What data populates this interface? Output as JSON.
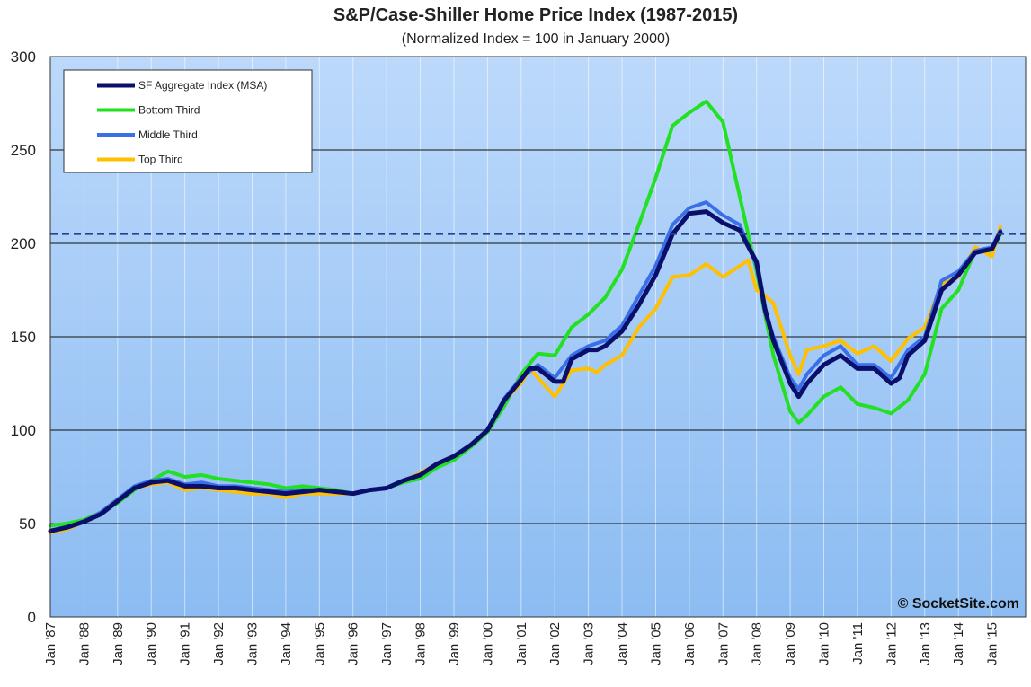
{
  "chart_data": {
    "type": "line",
    "title": "S&P/Case-Shiller Home Price Index (1987-2015)",
    "subtitle": "(Normalized Index = 100 in January 2000)",
    "xlabel": "",
    "ylabel": "",
    "ylim": [
      0,
      300
    ],
    "xlim": [
      1987.0,
      2016.0
    ],
    "yticks": [
      0,
      50,
      100,
      150,
      200,
      250,
      300
    ],
    "xtick_labels": [
      "Jan '87",
      "Jan '88",
      "Jan '89",
      "Jan '90",
      "Jan '91",
      "Jan '92",
      "Jan '93",
      "Jan '94",
      "Jan '95",
      "Jan '96",
      "Jan '97",
      "Jan '98",
      "Jan '99",
      "Jan '00",
      "Jan '01",
      "Jan '02",
      "Jan '03",
      "Jan '04",
      "Jan '05",
      "Jan '06",
      "Jan '07",
      "Jan '08",
      "Jan '09",
      "Jan '10",
      "Jan '11",
      "Jan '12",
      "Jan '13",
      "Jan '14",
      "Jan '15"
    ],
    "grid": true,
    "legend_position": "top-left",
    "reference_line": {
      "value": 205,
      "style": "dashed",
      "color": "#2a3f8f"
    },
    "copyright": "© SocketSite.com",
    "series": [
      {
        "name": "SF Aggregate Index (MSA)",
        "color": "#0a0f6b",
        "points": [
          [
            1987.0,
            46
          ],
          [
            1987.5,
            48
          ],
          [
            1988.0,
            51
          ],
          [
            1988.5,
            55
          ],
          [
            1989.0,
            62
          ],
          [
            1989.5,
            69
          ],
          [
            1990.0,
            72
          ],
          [
            1990.5,
            73
          ],
          [
            1991.0,
            70
          ],
          [
            1991.5,
            70
          ],
          [
            1992.0,
            69
          ],
          [
            1992.5,
            69
          ],
          [
            1993.0,
            68
          ],
          [
            1993.5,
            67
          ],
          [
            1994.0,
            66
          ],
          [
            1994.5,
            67
          ],
          [
            1995.0,
            68
          ],
          [
            1995.5,
            67
          ],
          [
            1996.0,
            66
          ],
          [
            1996.5,
            68
          ],
          [
            1997.0,
            69
          ],
          [
            1997.5,
            73
          ],
          [
            1998.0,
            76
          ],
          [
            1998.5,
            82
          ],
          [
            1999.0,
            86
          ],
          [
            1999.5,
            92
          ],
          [
            2000.0,
            100
          ],
          [
            2000.5,
            116
          ],
          [
            2001.0,
            127
          ],
          [
            2001.25,
            133
          ],
          [
            2001.5,
            133
          ],
          [
            2002.0,
            126
          ],
          [
            2002.25,
            126
          ],
          [
            2002.5,
            138
          ],
          [
            2003.0,
            143
          ],
          [
            2003.25,
            143
          ],
          [
            2003.5,
            145
          ],
          [
            2004.0,
            153
          ],
          [
            2004.5,
            167
          ],
          [
            2005.0,
            183
          ],
          [
            2005.5,
            205
          ],
          [
            2006.0,
            216
          ],
          [
            2006.5,
            217
          ],
          [
            2007.0,
            211
          ],
          [
            2007.5,
            207
          ],
          [
            2008.0,
            190
          ],
          [
            2008.25,
            165
          ],
          [
            2008.5,
            148
          ],
          [
            2009.0,
            125
          ],
          [
            2009.25,
            118
          ],
          [
            2009.5,
            125
          ],
          [
            2010.0,
            135
          ],
          [
            2010.5,
            140
          ],
          [
            2011.0,
            133
          ],
          [
            2011.5,
            133
          ],
          [
            2012.0,
            125
          ],
          [
            2012.25,
            128
          ],
          [
            2012.5,
            140
          ],
          [
            2013.0,
            148
          ],
          [
            2013.5,
            175
          ],
          [
            2014.0,
            183
          ],
          [
            2014.5,
            195
          ],
          [
            2015.0,
            197
          ],
          [
            2015.25,
            206
          ]
        ]
      },
      {
        "name": "Bottom Third",
        "color": "#22e022",
        "points": [
          [
            1987.0,
            49
          ],
          [
            1987.5,
            50
          ],
          [
            1988.0,
            52
          ],
          [
            1988.5,
            56
          ],
          [
            1989.0,
            61
          ],
          [
            1989.5,
            68
          ],
          [
            1990.0,
            73
          ],
          [
            1990.5,
            78
          ],
          [
            1991.0,
            75
          ],
          [
            1991.5,
            76
          ],
          [
            1992.0,
            74
          ],
          [
            1992.5,
            73
          ],
          [
            1993.0,
            72
          ],
          [
            1993.5,
            71
          ],
          [
            1994.0,
            69
          ],
          [
            1994.5,
            70
          ],
          [
            1995.0,
            69
          ],
          [
            1995.5,
            68
          ],
          [
            1996.0,
            66
          ],
          [
            1996.5,
            68
          ],
          [
            1997.0,
            69
          ],
          [
            1997.5,
            72
          ],
          [
            1998.0,
            74
          ],
          [
            1998.5,
            80
          ],
          [
            1999.0,
            84
          ],
          [
            1999.5,
            91
          ],
          [
            2000.0,
            99
          ],
          [
            2000.5,
            113
          ],
          [
            2001.0,
            130
          ],
          [
            2001.5,
            141
          ],
          [
            2002.0,
            140
          ],
          [
            2002.5,
            155
          ],
          [
            2003.0,
            162
          ],
          [
            2003.5,
            171
          ],
          [
            2004.0,
            186
          ],
          [
            2004.5,
            210
          ],
          [
            2005.0,
            235
          ],
          [
            2005.5,
            263
          ],
          [
            2006.0,
            270
          ],
          [
            2006.5,
            276
          ],
          [
            2007.0,
            265
          ],
          [
            2007.5,
            225
          ],
          [
            2008.0,
            185
          ],
          [
            2008.25,
            162
          ],
          [
            2008.5,
            140
          ],
          [
            2009.0,
            110
          ],
          [
            2009.25,
            104
          ],
          [
            2009.5,
            108
          ],
          [
            2010.0,
            118
          ],
          [
            2010.5,
            123
          ],
          [
            2011.0,
            114
          ],
          [
            2011.5,
            112
          ],
          [
            2012.0,
            109
          ],
          [
            2012.5,
            116
          ],
          [
            2013.0,
            130
          ],
          [
            2013.5,
            165
          ],
          [
            2014.0,
            175
          ],
          [
            2014.5,
            196
          ],
          [
            2015.0,
            196
          ],
          [
            2015.25,
            205
          ]
        ]
      },
      {
        "name": "Middle Third",
        "color": "#3a6fe8",
        "points": [
          [
            1987.0,
            46
          ],
          [
            1987.5,
            48
          ],
          [
            1988.0,
            51
          ],
          [
            1988.5,
            56
          ],
          [
            1989.0,
            63
          ],
          [
            1989.5,
            70
          ],
          [
            1990.0,
            73
          ],
          [
            1990.5,
            74
          ],
          [
            1991.0,
            71
          ],
          [
            1991.5,
            72
          ],
          [
            1992.0,
            70
          ],
          [
            1992.5,
            70
          ],
          [
            1993.0,
            69
          ],
          [
            1993.5,
            68
          ],
          [
            1994.0,
            67
          ],
          [
            1994.5,
            68
          ],
          [
            1995.0,
            68
          ],
          [
            1995.5,
            67
          ],
          [
            1996.0,
            66
          ],
          [
            1996.5,
            68
          ],
          [
            1997.0,
            69
          ],
          [
            1997.5,
            73
          ],
          [
            1998.0,
            76
          ],
          [
            1998.5,
            82
          ],
          [
            1999.0,
            86
          ],
          [
            1999.5,
            92
          ],
          [
            2000.0,
            100
          ],
          [
            2000.5,
            117
          ],
          [
            2001.0,
            128
          ],
          [
            2001.5,
            135
          ],
          [
            2002.0,
            128
          ],
          [
            2002.5,
            140
          ],
          [
            2003.0,
            145
          ],
          [
            2003.5,
            148
          ],
          [
            2004.0,
            156
          ],
          [
            2004.5,
            172
          ],
          [
            2005.0,
            188
          ],
          [
            2005.5,
            210
          ],
          [
            2006.0,
            219
          ],
          [
            2006.5,
            222
          ],
          [
            2007.0,
            215
          ],
          [
            2007.5,
            210
          ],
          [
            2008.0,
            188
          ],
          [
            2008.25,
            163
          ],
          [
            2008.5,
            150
          ],
          [
            2009.0,
            128
          ],
          [
            2009.25,
            122
          ],
          [
            2009.5,
            130
          ],
          [
            2010.0,
            140
          ],
          [
            2010.5,
            145
          ],
          [
            2011.0,
            135
          ],
          [
            2011.5,
            135
          ],
          [
            2012.0,
            128
          ],
          [
            2012.5,
            143
          ],
          [
            2013.0,
            150
          ],
          [
            2013.5,
            180
          ],
          [
            2014.0,
            185
          ],
          [
            2014.5,
            196
          ],
          [
            2015.0,
            198
          ],
          [
            2015.25,
            207
          ]
        ]
      },
      {
        "name": "Top Third",
        "color": "#ffc000",
        "points": [
          [
            1987.0,
            45
          ],
          [
            1987.5,
            47
          ],
          [
            1988.0,
            51
          ],
          [
            1988.5,
            56
          ],
          [
            1989.0,
            63
          ],
          [
            1989.5,
            69
          ],
          [
            1990.0,
            71
          ],
          [
            1990.5,
            72
          ],
          [
            1991.0,
            68
          ],
          [
            1991.5,
            69
          ],
          [
            1992.0,
            68
          ],
          [
            1992.5,
            67
          ],
          [
            1993.0,
            66
          ],
          [
            1993.5,
            66
          ],
          [
            1994.0,
            64
          ],
          [
            1994.5,
            66
          ],
          [
            1995.0,
            66
          ],
          [
            1995.5,
            66
          ],
          [
            1996.0,
            66
          ],
          [
            1996.5,
            68
          ],
          [
            1997.0,
            69
          ],
          [
            1997.5,
            73
          ],
          [
            1998.0,
            77
          ],
          [
            1998.5,
            82
          ],
          [
            1999.0,
            86
          ],
          [
            1999.5,
            92
          ],
          [
            2000.0,
            100
          ],
          [
            2000.5,
            116
          ],
          [
            2001.0,
            125
          ],
          [
            2001.25,
            133
          ],
          [
            2001.5,
            128
          ],
          [
            2002.0,
            118
          ],
          [
            2002.5,
            132
          ],
          [
            2003.0,
            133
          ],
          [
            2003.25,
            131
          ],
          [
            2003.5,
            135
          ],
          [
            2004.0,
            140
          ],
          [
            2004.5,
            155
          ],
          [
            2005.0,
            165
          ],
          [
            2005.5,
            182
          ],
          [
            2006.0,
            183
          ],
          [
            2006.5,
            189
          ],
          [
            2007.0,
            182
          ],
          [
            2007.5,
            188
          ],
          [
            2007.75,
            191
          ],
          [
            2008.0,
            175
          ],
          [
            2008.25,
            172
          ],
          [
            2008.5,
            168
          ],
          [
            2009.0,
            140
          ],
          [
            2009.25,
            130
          ],
          [
            2009.5,
            143
          ],
          [
            2010.0,
            145
          ],
          [
            2010.5,
            148
          ],
          [
            2011.0,
            141
          ],
          [
            2011.5,
            145
          ],
          [
            2012.0,
            137
          ],
          [
            2012.5,
            149
          ],
          [
            2013.0,
            155
          ],
          [
            2013.5,
            178
          ],
          [
            2014.0,
            182
          ],
          [
            2014.5,
            198
          ],
          [
            2015.0,
            193
          ],
          [
            2015.25,
            209
          ]
        ]
      }
    ]
  }
}
